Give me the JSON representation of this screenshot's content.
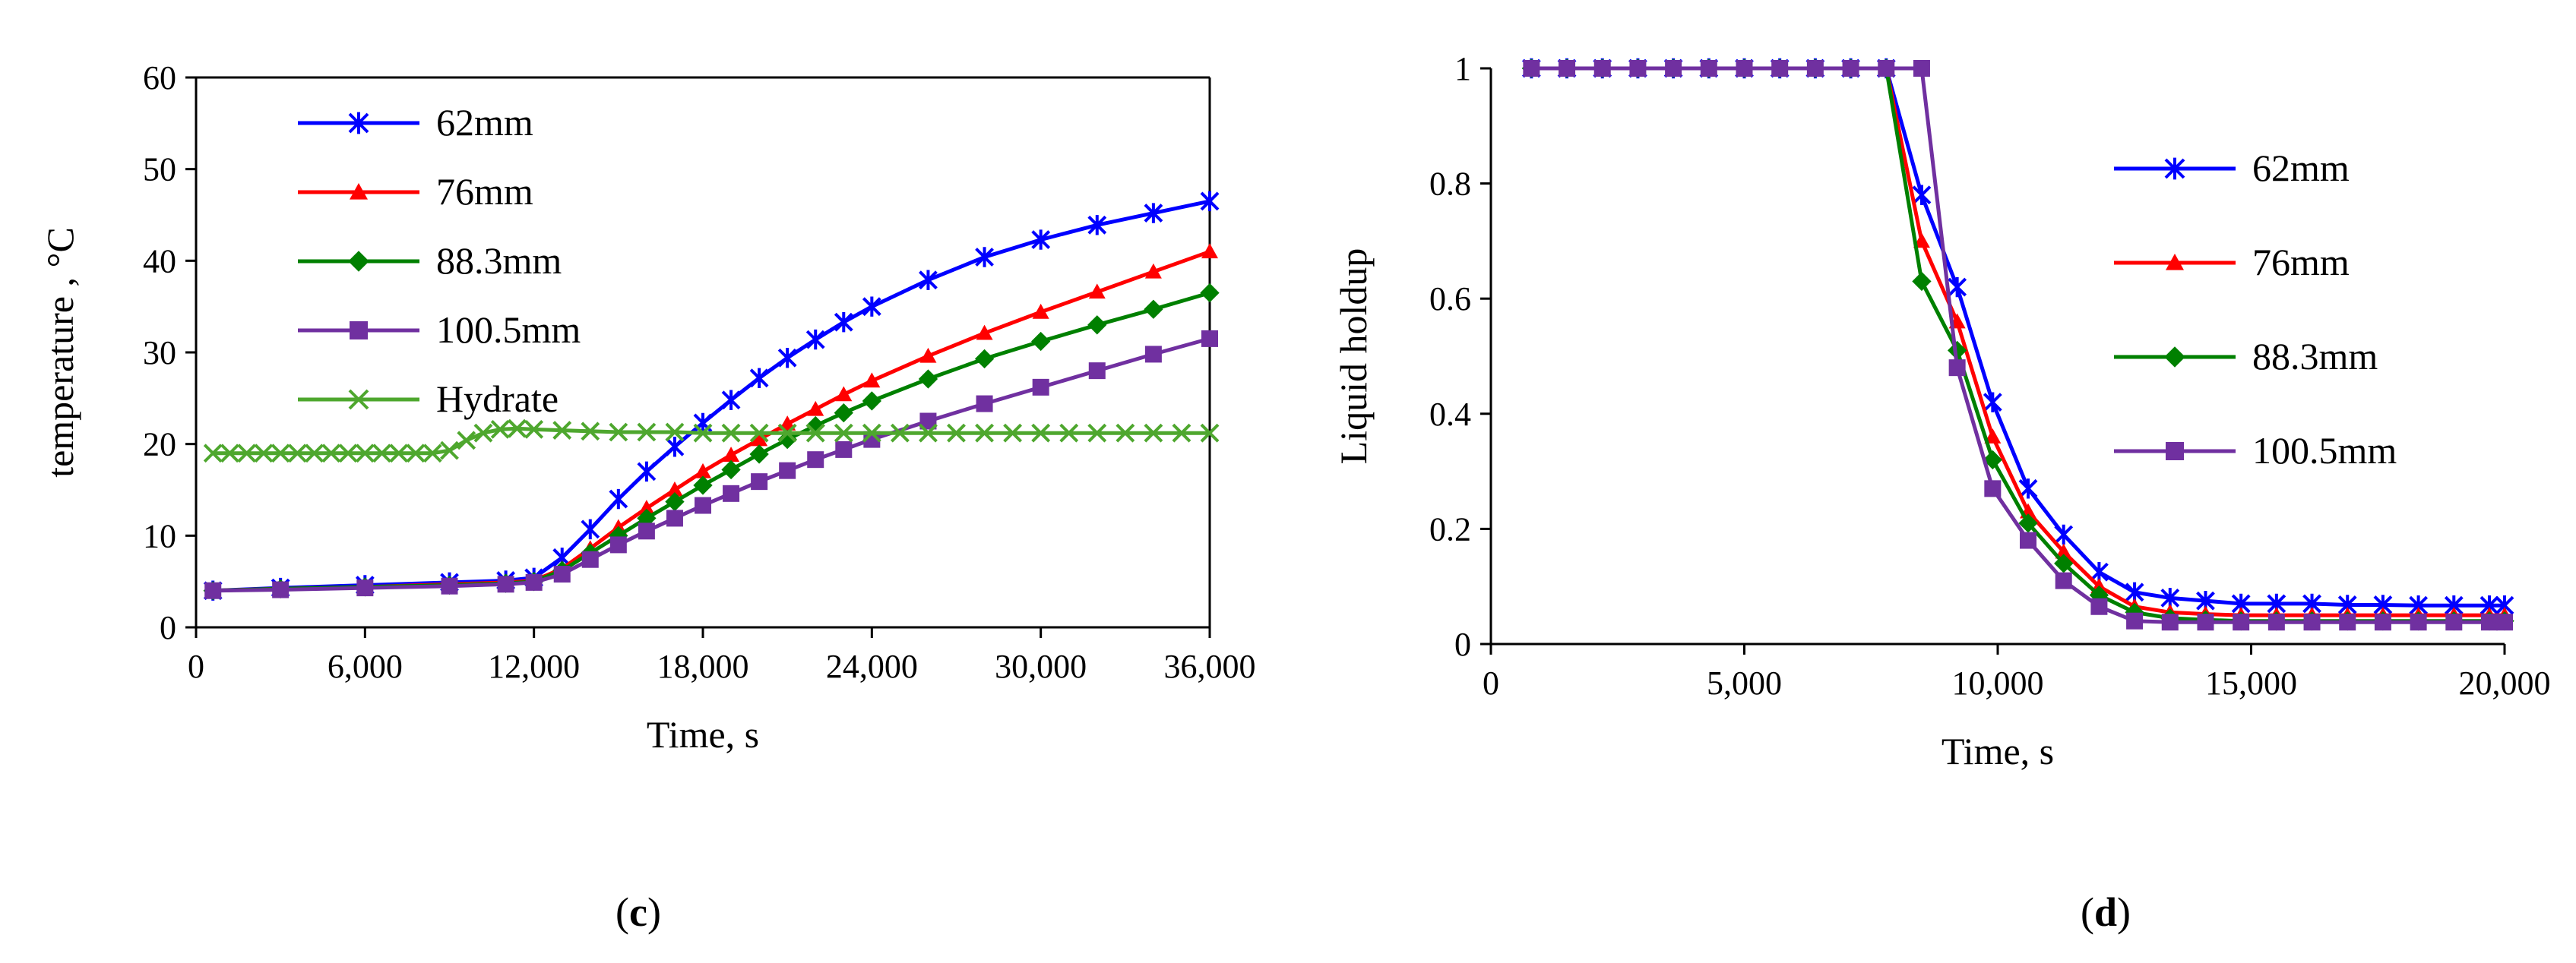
{
  "chart_data": [
    {
      "id": "c",
      "type": "line",
      "panel_label": "c",
      "title": "",
      "xlabel": "Time, s",
      "ylabel": "temperature , °C",
      "xlim": [
        0,
        36000
      ],
      "ylim": [
        0,
        60
      ],
      "xticks": [
        0,
        6000,
        12000,
        18000,
        24000,
        30000,
        36000
      ],
      "xtick_labels": [
        "0",
        "6,000",
        "12,000",
        "18,000",
        "24,000",
        "30,000",
        "36,000"
      ],
      "yticks": [
        0,
        10,
        20,
        30,
        40,
        50,
        60
      ],
      "ytick_labels": [
        "0",
        "10",
        "20",
        "30",
        "40",
        "50",
        "60"
      ],
      "grid": false,
      "legend_position": "top-left",
      "series": [
        {
          "name": "62mm",
          "color": "#0000ff",
          "marker": "asterisk",
          "x": [
            600,
            3000,
            6000,
            9000,
            11000,
            12000,
            13000,
            14000,
            15000,
            16000,
            17000,
            18000,
            19000,
            20000,
            21000,
            22000,
            23000,
            24000,
            26000,
            28000,
            30000,
            32000,
            34000,
            36000
          ],
          "y": [
            4.0,
            4.3,
            4.6,
            4.9,
            5.1,
            5.4,
            7.6,
            10.7,
            14.0,
            17.0,
            19.7,
            22.3,
            24.8,
            27.2,
            29.4,
            31.4,
            33.3,
            35.0,
            37.9,
            40.4,
            42.3,
            43.9,
            45.2,
            46.5
          ]
        },
        {
          "name": "76mm",
          "color": "#ff0000",
          "marker": "triangle",
          "x": [
            600,
            3000,
            6000,
            9000,
            11000,
            12000,
            13000,
            14000,
            15000,
            16000,
            17000,
            18000,
            19000,
            20000,
            21000,
            22000,
            23000,
            24000,
            26000,
            28000,
            30000,
            32000,
            34000,
            36000
          ],
          "y": [
            4.0,
            4.2,
            4.4,
            4.7,
            4.9,
            5.1,
            6.4,
            8.6,
            10.9,
            13.0,
            15.0,
            17.0,
            18.8,
            20.5,
            22.2,
            23.8,
            25.4,
            26.9,
            29.6,
            32.1,
            34.4,
            36.6,
            38.8,
            41.0
          ]
        },
        {
          "name": "88.3mm",
          "color": "#008000",
          "marker": "diamond",
          "x": [
            600,
            3000,
            6000,
            9000,
            11000,
            12000,
            13000,
            14000,
            15000,
            16000,
            17000,
            18000,
            19000,
            20000,
            21000,
            22000,
            23000,
            24000,
            26000,
            28000,
            30000,
            32000,
            34000,
            36000
          ],
          "y": [
            4.0,
            4.2,
            4.4,
            4.6,
            4.8,
            5.0,
            6.2,
            8.1,
            10.0,
            11.9,
            13.7,
            15.5,
            17.2,
            18.9,
            20.5,
            22.0,
            23.4,
            24.7,
            27.1,
            29.3,
            31.2,
            33.0,
            34.7,
            36.5
          ]
        },
        {
          "name": "100.5mm",
          "color": "#7030a0",
          "marker": "square",
          "x": [
            600,
            3000,
            6000,
            9000,
            11000,
            12000,
            13000,
            14000,
            15000,
            16000,
            17000,
            18000,
            19000,
            20000,
            21000,
            22000,
            23000,
            24000,
            26000,
            28000,
            30000,
            32000,
            34000,
            36000
          ],
          "y": [
            4.0,
            4.1,
            4.3,
            4.5,
            4.7,
            4.9,
            5.8,
            7.4,
            9.0,
            10.5,
            11.9,
            13.3,
            14.6,
            15.9,
            17.1,
            18.3,
            19.4,
            20.5,
            22.5,
            24.4,
            26.2,
            28.0,
            29.8,
            31.5
          ]
        },
        {
          "name": "Hydrate",
          "color": "#4ea72e",
          "marker": "x",
          "x": [
            600,
            1200,
            1800,
            2400,
            3000,
            3600,
            4200,
            4800,
            5400,
            6000,
            6600,
            7200,
            7800,
            8400,
            9000,
            9600,
            10200,
            10800,
            11400,
            12000,
            13000,
            14000,
            15000,
            16000,
            17000,
            18000,
            19000,
            20000,
            21000,
            22000,
            23000,
            24000,
            25000,
            26000,
            27000,
            28000,
            29000,
            30000,
            31000,
            32000,
            33000,
            34000,
            35000,
            36000
          ],
          "y": [
            19.0,
            19.0,
            19.0,
            19.0,
            19.0,
            19.0,
            19.0,
            19.0,
            19.0,
            19.0,
            19.0,
            19.0,
            19.0,
            19.0,
            19.3,
            20.4,
            21.2,
            21.6,
            21.7,
            21.6,
            21.5,
            21.4,
            21.3,
            21.3,
            21.3,
            21.2,
            21.2,
            21.2,
            21.2,
            21.2,
            21.2,
            21.2,
            21.2,
            21.2,
            21.2,
            21.2,
            21.2,
            21.2,
            21.2,
            21.2,
            21.2,
            21.2,
            21.2,
            21.2
          ]
        }
      ]
    },
    {
      "id": "d",
      "type": "line",
      "panel_label": "d",
      "title": "",
      "xlabel": "Time, s",
      "ylabel": "Liquid holdup",
      "xlim": [
        0,
        20000
      ],
      "ylim": [
        0,
        1
      ],
      "xticks": [
        0,
        5000,
        10000,
        15000,
        20000
      ],
      "xtick_labels": [
        "0",
        "5,000",
        "10,000",
        "15,000",
        "20,000"
      ],
      "yticks": [
        0,
        0.2,
        0.4,
        0.6,
        0.8,
        1
      ],
      "ytick_labels": [
        "0",
        "0.2",
        "0.4",
        "0.6",
        "0.8",
        "1"
      ],
      "grid": false,
      "legend_position": "right",
      "series": [
        {
          "name": "62mm",
          "color": "#0000ff",
          "marker": "asterisk",
          "x": [
            800,
            1500,
            2200,
            2900,
            3600,
            4300,
            5000,
            5700,
            6400,
            7100,
            7800,
            8500,
            9200,
            9900,
            10600,
            11300,
            12000,
            12700,
            13400,
            14100,
            14800,
            15500,
            16200,
            16900,
            17600,
            18300,
            19000,
            19700,
            20000
          ],
          "y": [
            1,
            1,
            1,
            1,
            1,
            1,
            1,
            1,
            1,
            1,
            1,
            0.78,
            0.62,
            0.42,
            0.27,
            0.19,
            0.125,
            0.09,
            0.08,
            0.075,
            0.07,
            0.07,
            0.07,
            0.068,
            0.068,
            0.067,
            0.067,
            0.067,
            0.067
          ]
        },
        {
          "name": "76mm",
          "color": "#ff0000",
          "marker": "triangle",
          "x": [
            800,
            1500,
            2200,
            2900,
            3600,
            4300,
            5000,
            5700,
            6400,
            7100,
            7800,
            8500,
            9200,
            9900,
            10600,
            11300,
            12000,
            12700,
            13400,
            14100,
            14800,
            15500,
            16200,
            16900,
            17600,
            18300,
            19000,
            19700,
            20000
          ],
          "y": [
            1,
            1,
            1,
            1,
            1,
            1,
            1,
            1,
            1,
            1,
            1,
            0.7,
            0.56,
            0.36,
            0.23,
            0.16,
            0.1,
            0.065,
            0.055,
            0.052,
            0.05,
            0.05,
            0.05,
            0.05,
            0.05,
            0.05,
            0.05,
            0.05,
            0.05
          ]
        },
        {
          "name": "88.3mm",
          "color": "#008000",
          "marker": "diamond",
          "x": [
            800,
            1500,
            2200,
            2900,
            3600,
            4300,
            5000,
            5700,
            6400,
            7100,
            7800,
            8500,
            9200,
            9900,
            10600,
            11300,
            12000,
            12700,
            13400,
            14100,
            14800,
            15500,
            16200,
            16900,
            17600,
            18300,
            19000,
            19700,
            20000
          ],
          "y": [
            1,
            1,
            1,
            1,
            1,
            1,
            1,
            1,
            1,
            1,
            1,
            0.63,
            0.51,
            0.32,
            0.21,
            0.14,
            0.085,
            0.055,
            0.045,
            0.042,
            0.04,
            0.04,
            0.04,
            0.04,
            0.04,
            0.04,
            0.04,
            0.04,
            0.04
          ]
        },
        {
          "name": "100.5mm",
          "color": "#7030a0",
          "marker": "square",
          "x": [
            800,
            1500,
            2200,
            2900,
            3600,
            4300,
            5000,
            5700,
            6400,
            7100,
            7800,
            8500,
            9200,
            9900,
            10600,
            11300,
            12000,
            12700,
            13400,
            14100,
            14800,
            15500,
            16200,
            16900,
            17600,
            18300,
            19000,
            19700,
            20000
          ],
          "y": [
            1,
            1,
            1,
            1,
            1,
            1,
            1,
            1,
            1,
            1,
            1,
            1,
            0.48,
            0.27,
            0.18,
            0.11,
            0.065,
            0.04,
            0.038,
            0.038,
            0.038,
            0.038,
            0.038,
            0.038,
            0.038,
            0.038,
            0.038,
            0.038,
            0.038
          ]
        }
      ]
    }
  ]
}
